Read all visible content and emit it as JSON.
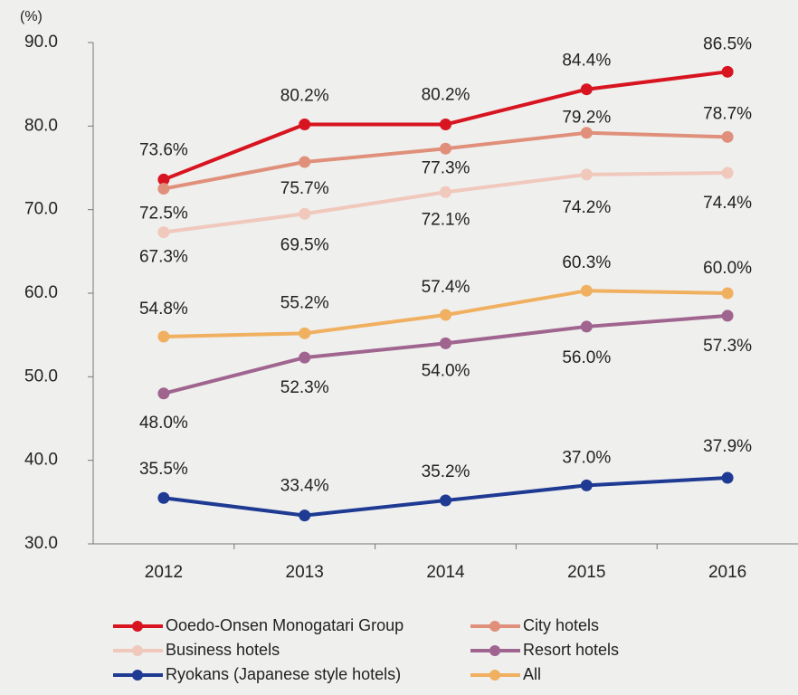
{
  "chart_data": {
    "type": "line",
    "y_axis_label": "(%)",
    "categories": [
      "2012",
      "2013",
      "2014",
      "2015",
      "2016"
    ],
    "ylim": [
      30,
      90
    ],
    "yticks": [
      {
        "value": 30,
        "label": "30.0"
      },
      {
        "value": 40,
        "label": "40.0"
      },
      {
        "value": 50,
        "label": "50.0"
      },
      {
        "value": 60,
        "label": "60.0"
      },
      {
        "value": 70,
        "label": "70.0"
      },
      {
        "value": 80,
        "label": "80.0"
      },
      {
        "value": 90,
        "label": "90.0"
      }
    ],
    "grid": false,
    "series": [
      {
        "name": "Ooedo-Onsen Monogatari Group",
        "color": "#d7141f",
        "values": [
          73.6,
          80.2,
          80.2,
          84.4,
          86.5
        ],
        "value_labels": [
          "73.6%",
          "80.2%",
          "80.2%",
          "84.4%",
          "86.5%"
        ]
      },
      {
        "name": "City hotels",
        "color": "#e0907a",
        "values": [
          72.5,
          75.7,
          77.3,
          79.2,
          78.7
        ],
        "value_labels": [
          "72.5%",
          "75.7%",
          "77.3%",
          "79.2%",
          "78.7%"
        ]
      },
      {
        "name": "Business hotels",
        "color": "#f0c8bc",
        "values": [
          67.3,
          69.5,
          72.1,
          74.2,
          74.4
        ],
        "value_labels": [
          "67.3%",
          "69.5%",
          "72.1%",
          "74.2%",
          "74.4%"
        ]
      },
      {
        "name": "Resort hotels",
        "color": "#a0658f",
        "values": [
          48.0,
          52.3,
          54.0,
          56.0,
          57.3
        ],
        "value_labels": [
          "48.0%",
          "52.3%",
          "54.0%",
          "56.0%",
          "57.3%"
        ]
      },
      {
        "name": "Ryokans (Japanese style hotels)",
        "color": "#1f3a93",
        "values": [
          35.5,
          33.4,
          35.2,
          37.0,
          37.9
        ],
        "value_labels": [
          "35.5%",
          "33.4%",
          "35.2%",
          "37.0%",
          "37.9%"
        ]
      },
      {
        "name": "All",
        "color": "#f0b060",
        "values": [
          54.8,
          55.2,
          57.4,
          60.3,
          60.0
        ],
        "value_labels": [
          "54.8%",
          "55.2%",
          "57.4%",
          "60.3%",
          "60.0%"
        ]
      }
    ]
  }
}
